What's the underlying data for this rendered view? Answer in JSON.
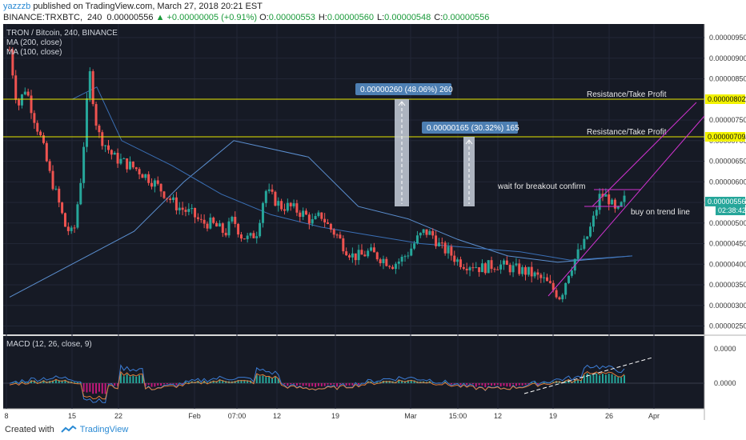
{
  "header": {
    "publisher": "yazzzb",
    "published_text": "published on TradingView.com, March 27, 2018 20:21 EST",
    "symbol": "BINANCE:TRXBTC,",
    "timeframe": "240",
    "last": "0.00000556",
    "change": "▲ +0.00000005 (+0.91%)",
    "o_label": "O:",
    "o": "0.00000553",
    "h_label": "H:",
    "h": "0.00000560",
    "l_label": "L:",
    "l": "0.00000548",
    "c_label": "C:",
    "c": "0.00000556"
  },
  "legend": {
    "title": "TRON / Bitcoin, 240, BINANCE",
    "ma200": "MA (200, close)",
    "ma100": "MA (100, close)"
  },
  "macd": {
    "title": "MACD (12, 26, close, 9)",
    "ticks": [
      "0.0000",
      "0.0000"
    ]
  },
  "annotations": {
    "measure1": "0.00000260 (48.06%) 260",
    "measure2": "0.00000165 (30.32%) 165",
    "resistance1": "Resistance/Take Profit",
    "resistance2": "Resistance/Take Profit",
    "wait": "wait for breakout confirm",
    "buy": "buy on trend line"
  },
  "price_badges": {
    "resistance1": "0.00000802",
    "resistance2": "0.00000709",
    "last_price": "0.00000556",
    "countdown": "02:38:42"
  },
  "colors": {
    "background": "#161a25",
    "grid": "#232837",
    "up": "#26a69a",
    "down": "#ef5350",
    "ma": "#4a7fc1",
    "resistance": "#e6e600",
    "channel": "#d033d0",
    "measure_label": "#4d7fb3",
    "macd_hist": "#c2187a"
  },
  "footer": {
    "created_with": "Created with",
    "brand": "TradingView"
  },
  "chart_data": {
    "type": "candlestick",
    "title": "TRON / Bitcoin, 240, BINANCE",
    "y_ticks": [
      "0.00000950",
      "0.00000900",
      "0.00000850",
      "0.00000800",
      "0.00000750",
      "0.00000700",
      "0.00000650",
      "0.00000600",
      "0.00000550",
      "0.00000500",
      "0.00000450",
      "0.00000400",
      "0.00000350",
      "0.00000300",
      "0.00000250"
    ],
    "x_ticks": [
      "8",
      "15",
      "22",
      "Feb",
      "07:00",
      "12",
      "19",
      "Mar",
      "15:00",
      "12",
      "19",
      "26",
      "Apr"
    ],
    "ylim": [
      2.3e-06,
      9.7e-06
    ],
    "price_path": [
      [
        "8",
        920
      ],
      [
        "8.5",
        780
      ],
      [
        "9",
        830
      ],
      [
        "10",
        760
      ],
      [
        "11",
        700
      ],
      [
        "12",
        620
      ],
      [
        "13",
        560
      ],
      [
        "14",
        490
      ],
      [
        "15",
        470
      ],
      [
        "16",
        620
      ],
      [
        "17",
        870
      ],
      [
        "18",
        720
      ],
      [
        "19",
        690
      ],
      [
        "20",
        660
      ],
      [
        "21",
        650
      ],
      [
        "22",
        640
      ],
      [
        "23",
        630
      ],
      [
        "24",
        615
      ],
      [
        "25",
        600
      ],
      [
        "26",
        580
      ],
      [
        "27",
        560
      ],
      [
        "28",
        540
      ],
      [
        "29",
        530
      ],
      [
        "30",
        520
      ],
      [
        "31",
        500
      ],
      [
        "Feb",
        500
      ],
      [
        "2",
        490
      ],
      [
        "3",
        475
      ],
      [
        "4",
        510
      ],
      [
        "5",
        470
      ],
      [
        "6",
        460
      ],
      [
        "07:00",
        480
      ],
      [
        "8",
        580
      ],
      [
        "9",
        560
      ],
      [
        "10",
        540
      ],
      [
        "11",
        540
      ],
      [
        "12",
        530
      ],
      [
        "13",
        520
      ],
      [
        "14",
        500
      ],
      [
        "15",
        520
      ],
      [
        "16",
        490
      ],
      [
        "17",
        470
      ],
      [
        "18",
        440
      ],
      [
        "19",
        420
      ],
      [
        "20",
        420
      ],
      [
        "21",
        430
      ],
      [
        "22",
        420
      ],
      [
        "23",
        410
      ],
      [
        "24",
        400
      ],
      [
        "25",
        410
      ],
      [
        "26",
        430
      ],
      [
        "27",
        460
      ],
      [
        "Mar",
        480
      ],
      [
        "2",
        470
      ],
      [
        "3",
        440
      ],
      [
        "4",
        430
      ],
      [
        "5",
        410
      ],
      [
        "6",
        400
      ],
      [
        "7",
        400
      ],
      [
        "8",
        390
      ],
      [
        "9",
        395
      ],
      [
        "10",
        400
      ],
      [
        "15:00",
        395
      ],
      [
        "12",
        390
      ],
      [
        "13",
        385
      ],
      [
        "14",
        380
      ],
      [
        "15",
        370
      ],
      [
        "16",
        360
      ],
      [
        "17",
        340
      ],
      [
        "18",
        320
      ],
      [
        "19",
        380
      ],
      [
        "20",
        420
      ],
      [
        "21",
        450
      ],
      [
        "22",
        500
      ],
      [
        "23",
        570
      ],
      [
        "24",
        560
      ],
      [
        "25",
        520
      ],
      [
        "26",
        556
      ]
    ],
    "ma200_path": [
      [
        0,
        320
      ],
      [
        20,
        480
      ],
      [
        28,
        600
      ],
      [
        36,
        700
      ],
      [
        48,
        660
      ],
      [
        56,
        540
      ],
      [
        64,
        510
      ],
      [
        72,
        460
      ],
      [
        80,
        420
      ],
      [
        88,
        405
      ],
      [
        100,
        420
      ]
    ],
    "ma100_path": [
      [
        10,
        800
      ],
      [
        14,
        830
      ],
      [
        18,
        700
      ],
      [
        26,
        640
      ],
      [
        34,
        570
      ],
      [
        42,
        520
      ],
      [
        50,
        490
      ],
      [
        58,
        470
      ],
      [
        66,
        450
      ],
      [
        74,
        440
      ],
      [
        82,
        430
      ],
      [
        90,
        410
      ],
      [
        100,
        420
      ]
    ],
    "resistance_lines": [
      8.02e-06,
      7.09e-06
    ],
    "last_price": 5.56e-06
  }
}
